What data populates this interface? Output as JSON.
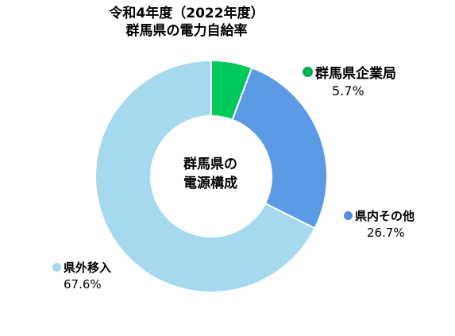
{
  "chart_data": {
    "type": "pie",
    "title": [
      "令和4年度（2022年度）",
      "群馬県の電力自給率"
    ],
    "center_label": [
      "群馬県の",
      "電源構成"
    ],
    "slices": [
      {
        "name": "群馬県企業局",
        "value": 5.7,
        "label": "5.7%",
        "color": "#00c85a"
      },
      {
        "name": "県内その他",
        "value": 26.7,
        "label": "26.7%",
        "color": "#5b9be6"
      },
      {
        "name": "県外移入",
        "value": 67.6,
        "label": "67.6%",
        "color": "#a6d9ed"
      }
    ]
  }
}
